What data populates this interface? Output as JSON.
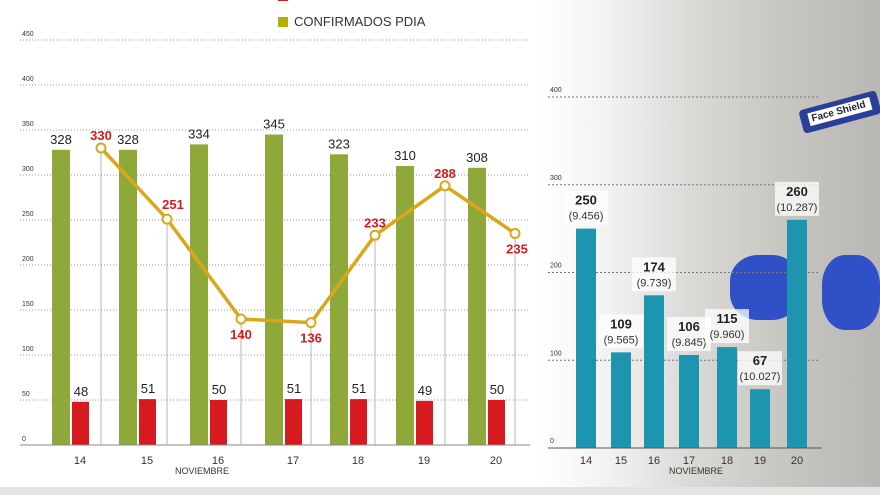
{
  "chart_data": [
    {
      "type": "bar+line",
      "categories": [
        "14",
        "15",
        "16",
        "17",
        "18",
        "19",
        "20"
      ],
      "xlabel": "NOVIEMBRE",
      "ylim": [
        0,
        450
      ],
      "yticks": [
        0,
        50,
        100,
        150,
        200,
        250,
        300,
        350,
        400,
        450
      ],
      "legend": [
        {
          "name": "CONFIRMADOS PDIA",
          "color": "#b5b000"
        }
      ],
      "series": [
        {
          "name": "green",
          "type": "bar",
          "color": "#8fa83a",
          "values": [
            328,
            328,
            334,
            345,
            323,
            310,
            308
          ]
        },
        {
          "name": "red",
          "type": "bar",
          "color": "#d71920",
          "values": [
            48,
            51,
            50,
            51,
            51,
            49,
            50
          ]
        },
        {
          "name": "line",
          "type": "line",
          "color": "#d9a81a",
          "values": [
            330,
            251,
            140,
            136,
            233,
            288,
            235
          ]
        }
      ]
    },
    {
      "type": "bar",
      "categories": [
        "14",
        "15",
        "16",
        "17",
        "18",
        "19",
        "20"
      ],
      "xlabel": "NOVIEMBRE",
      "ylim": [
        0,
        400
      ],
      "yticks": [
        0,
        100,
        200,
        300,
        400
      ],
      "color": "#1e95b0",
      "values": [
        250,
        109,
        174,
        106,
        115,
        67,
        260
      ],
      "sublabels": [
        "(9.456)",
        "(9.565)",
        "(9.739)",
        "(9.845)",
        "(9.960)",
        "(10.027)",
        "(10.287)"
      ]
    }
  ],
  "photo": {
    "shield_text": "Face Shield"
  }
}
